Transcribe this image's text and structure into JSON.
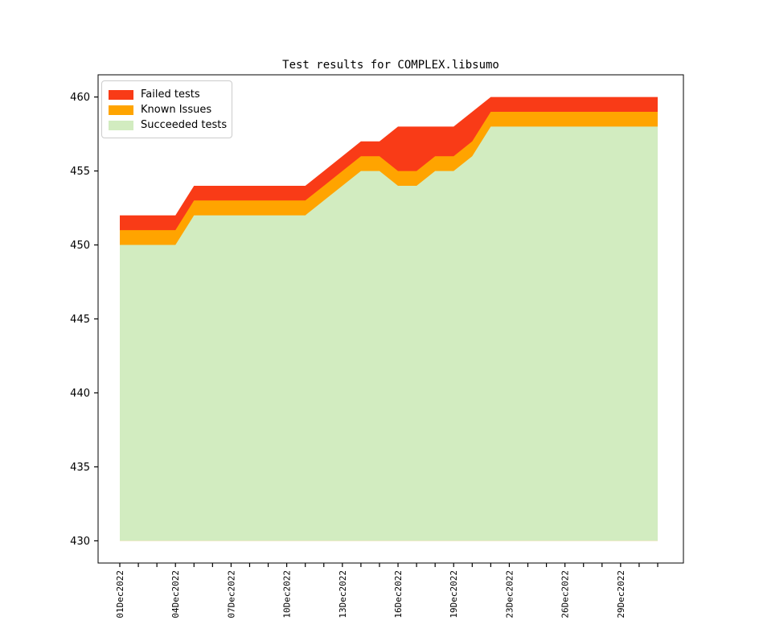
{
  "title": "Test results for COMPLEX.libsumo",
  "colors": {
    "failed": "#f93b17",
    "known": "#ffa400",
    "succeeded": "#d2ecc0",
    "axis": "#000000",
    "legend_border": "#cccccc"
  },
  "legend": {
    "position": "upper left",
    "entries": [
      {
        "label": "Failed tests",
        "color_key": "failed"
      },
      {
        "label": "Known Issues",
        "color_key": "known"
      },
      {
        "label": "Succeeded tests",
        "color_key": "succeeded"
      }
    ]
  },
  "chart_data": {
    "type": "area",
    "stacked": true,
    "title": "Test results for COMPLEX.libsumo",
    "xlabel": "",
    "ylabel": "",
    "grid": false,
    "legend_position": "upper left",
    "ylim": [
      428.5,
      461.5
    ],
    "area_baseline": 430,
    "yticks": [
      430,
      435,
      440,
      445,
      450,
      455,
      460
    ],
    "x_dates": [
      "01Dec2022",
      "02Dec2022",
      "03Dec2022",
      "04Dec2022",
      "05Dec2022",
      "06Dec2022",
      "07Dec2022",
      "08Dec2022",
      "09Dec2022",
      "10Dec2022",
      "11Dec2022",
      "12Dec2022",
      "13Dec2022",
      "14Dec2022",
      "15Dec2022",
      "16Dec2022",
      "17Dec2022",
      "18Dec2022",
      "19Dec2022",
      "20Dec2022",
      "22Dec2022",
      "23Dec2022",
      "24Dec2022",
      "25Dec2022",
      "26Dec2022",
      "27Dec2022",
      "28Dec2022",
      "29Dec2022",
      "30Dec2022",
      "31Dec2022"
    ],
    "xtick_label_indices": [
      0,
      3,
      6,
      9,
      12,
      15,
      18,
      21,
      24,
      27
    ],
    "xtick_labels_shown": [
      "01Dec2022",
      "04Dec2022",
      "07Dec2022",
      "10Dec2022",
      "13Dec2022",
      "16Dec2022",
      "19Dec2022",
      "23Dec2022",
      "26Dec2022",
      "29Dec2022"
    ],
    "stack_order_bottom_to_top": [
      "Succeeded tests",
      "Known Issues",
      "Failed tests"
    ],
    "series": [
      {
        "name": "Succeeded tests",
        "color_key": "succeeded",
        "values": [
          450,
          450,
          450,
          450,
          452,
          452,
          452,
          452,
          452,
          452,
          452,
          453,
          454,
          455,
          455,
          454,
          454,
          455,
          455,
          456,
          458,
          458,
          458,
          458,
          458,
          458,
          458,
          458,
          458,
          458
        ]
      },
      {
        "name": "Known Issues",
        "color_key": "known",
        "values": [
          1,
          1,
          1,
          1,
          1,
          1,
          1,
          1,
          1,
          1,
          1,
          1,
          1,
          1,
          1,
          1,
          1,
          1,
          1,
          1,
          1,
          1,
          1,
          1,
          1,
          1,
          1,
          1,
          1,
          1
        ]
      },
      {
        "name": "Failed tests",
        "color_key": "failed",
        "values": [
          1,
          1,
          1,
          1,
          1,
          1,
          1,
          1,
          1,
          1,
          1,
          1,
          1,
          1,
          1,
          3,
          3,
          2,
          2,
          2,
          1,
          1,
          1,
          1,
          1,
          1,
          1,
          1,
          1,
          1
        ]
      }
    ]
  }
}
